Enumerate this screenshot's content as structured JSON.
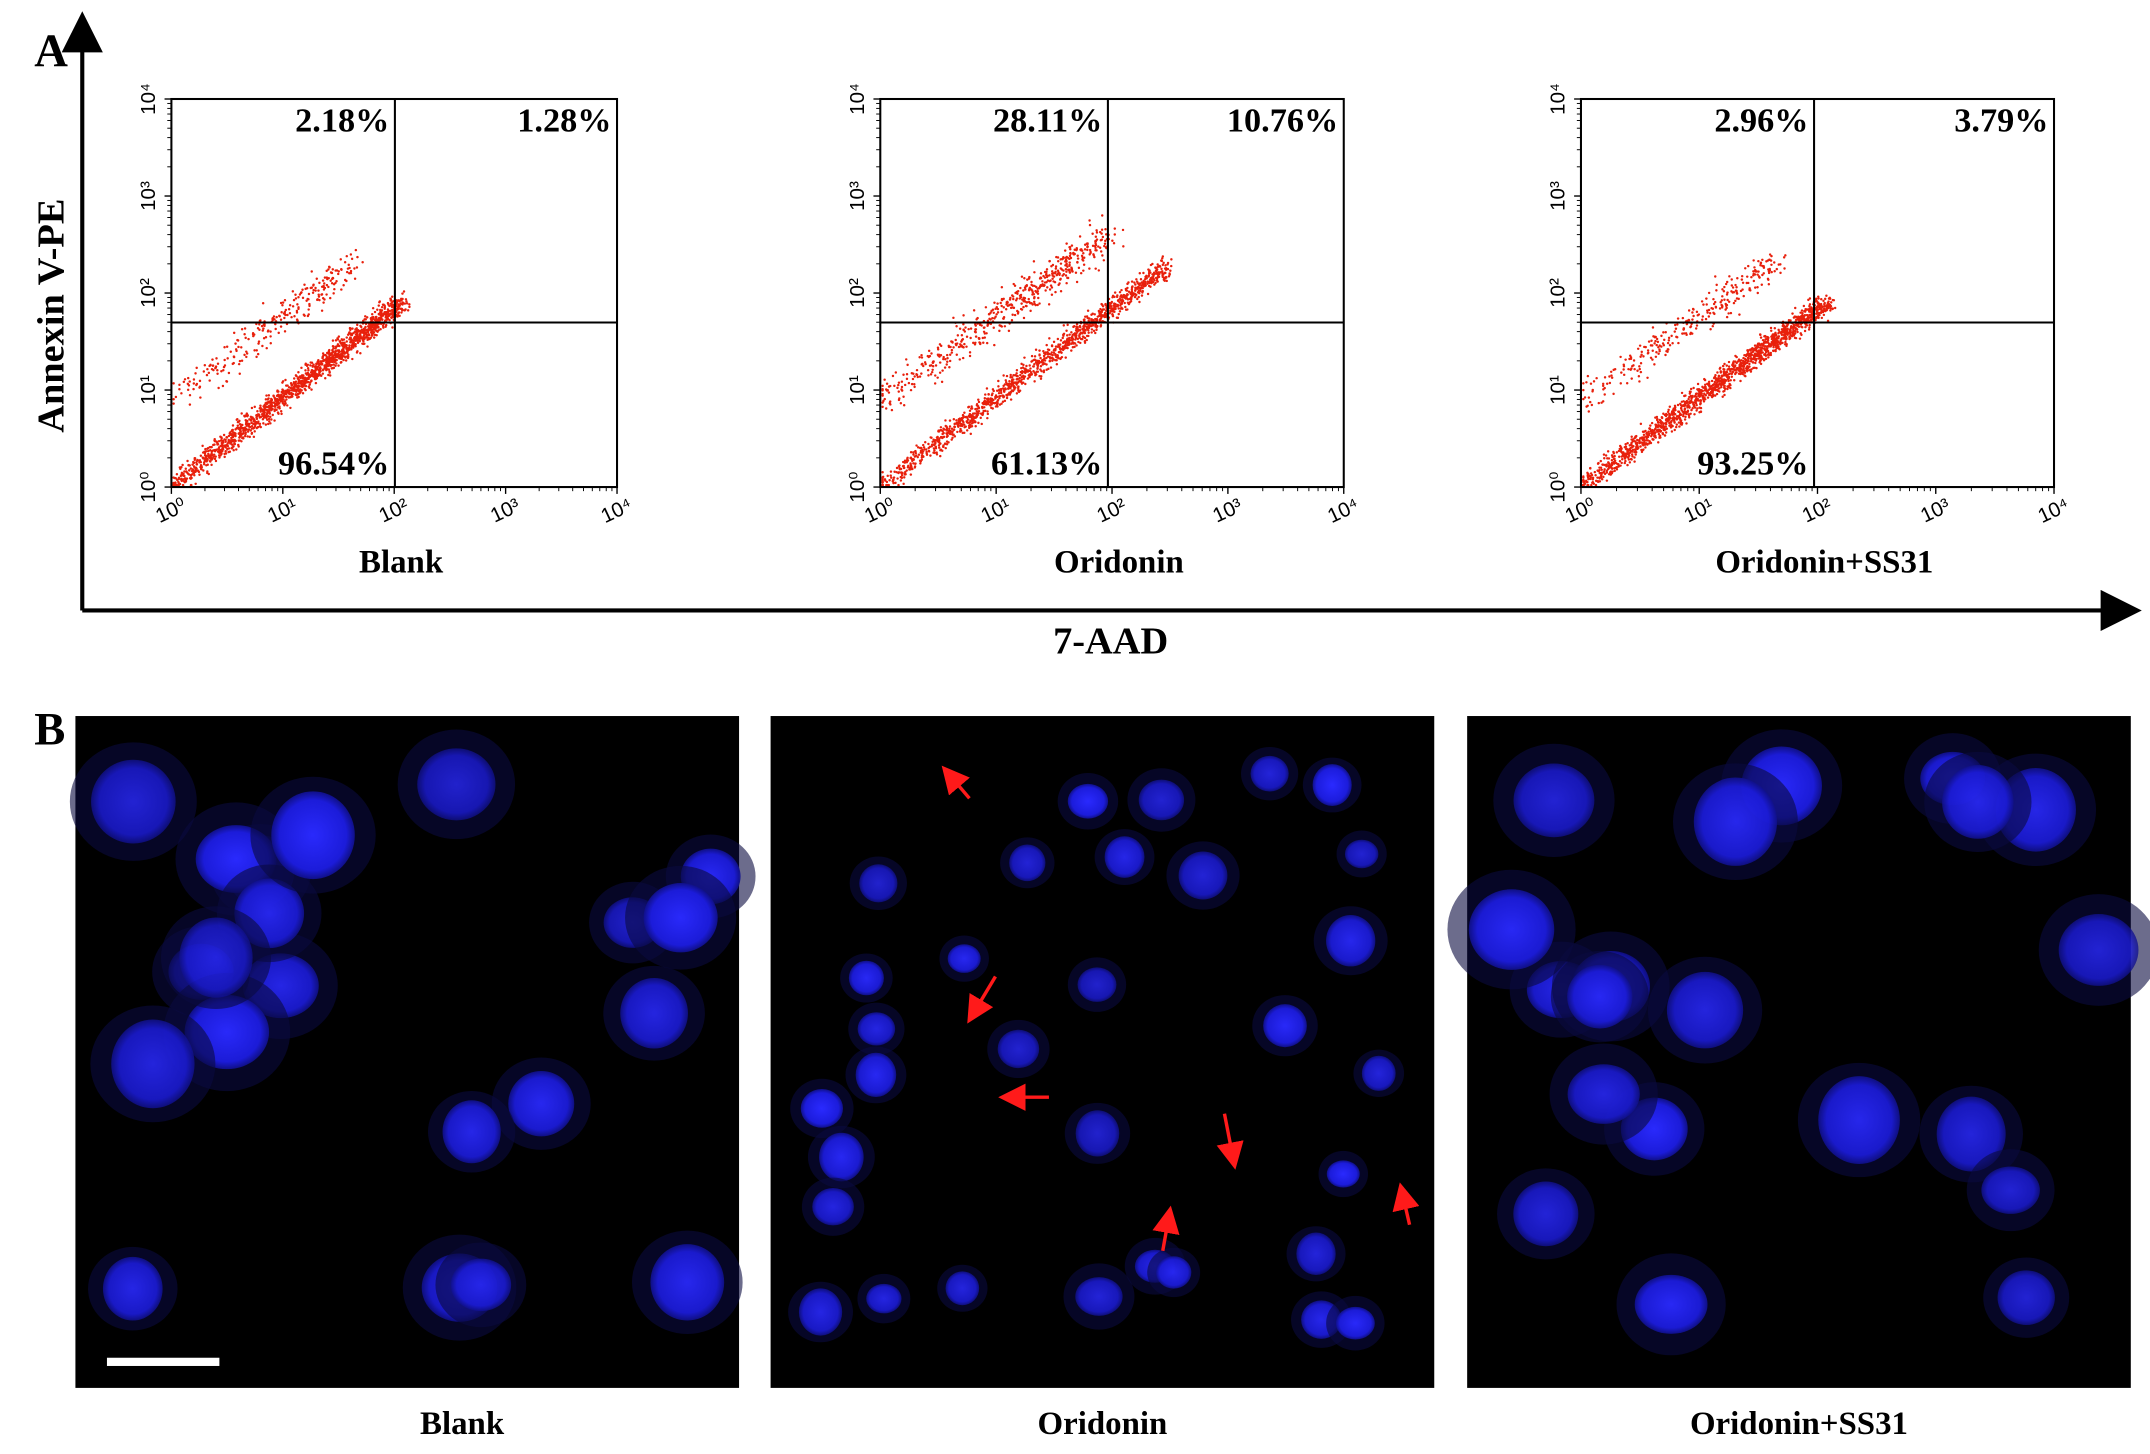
{
  "panel_a": {
    "label": "A",
    "y_axis_label": "Annexin V-PE",
    "x_axis_label": "7-AAD",
    "axis_ticks": [
      {
        "value": 1,
        "label": "10⁰"
      },
      {
        "value": 10,
        "label": "10¹"
      },
      {
        "value": 100,
        "label": "10²"
      },
      {
        "value": 1000,
        "label": "10³"
      },
      {
        "value": 10000,
        "label": "10⁴"
      }
    ],
    "plots": [
      {
        "caption": "Blank",
        "upper_left": "2.18%",
        "upper_right": "1.28%",
        "lower_left": "96.54%"
      },
      {
        "caption": "Oridonin",
        "upper_left": "28.11%",
        "upper_right": "10.76%",
        "lower_left": "61.13%"
      },
      {
        "caption": "Oridonin+SS31",
        "upper_left": "2.96%",
        "upper_right": "3.79%",
        "lower_left": "93.25%"
      }
    ]
  },
  "panel_b": {
    "label": "B",
    "images": [
      {
        "caption": "Blank"
      },
      {
        "caption": "Oridonin"
      },
      {
        "caption": "Oridonin+SS31"
      }
    ]
  }
}
